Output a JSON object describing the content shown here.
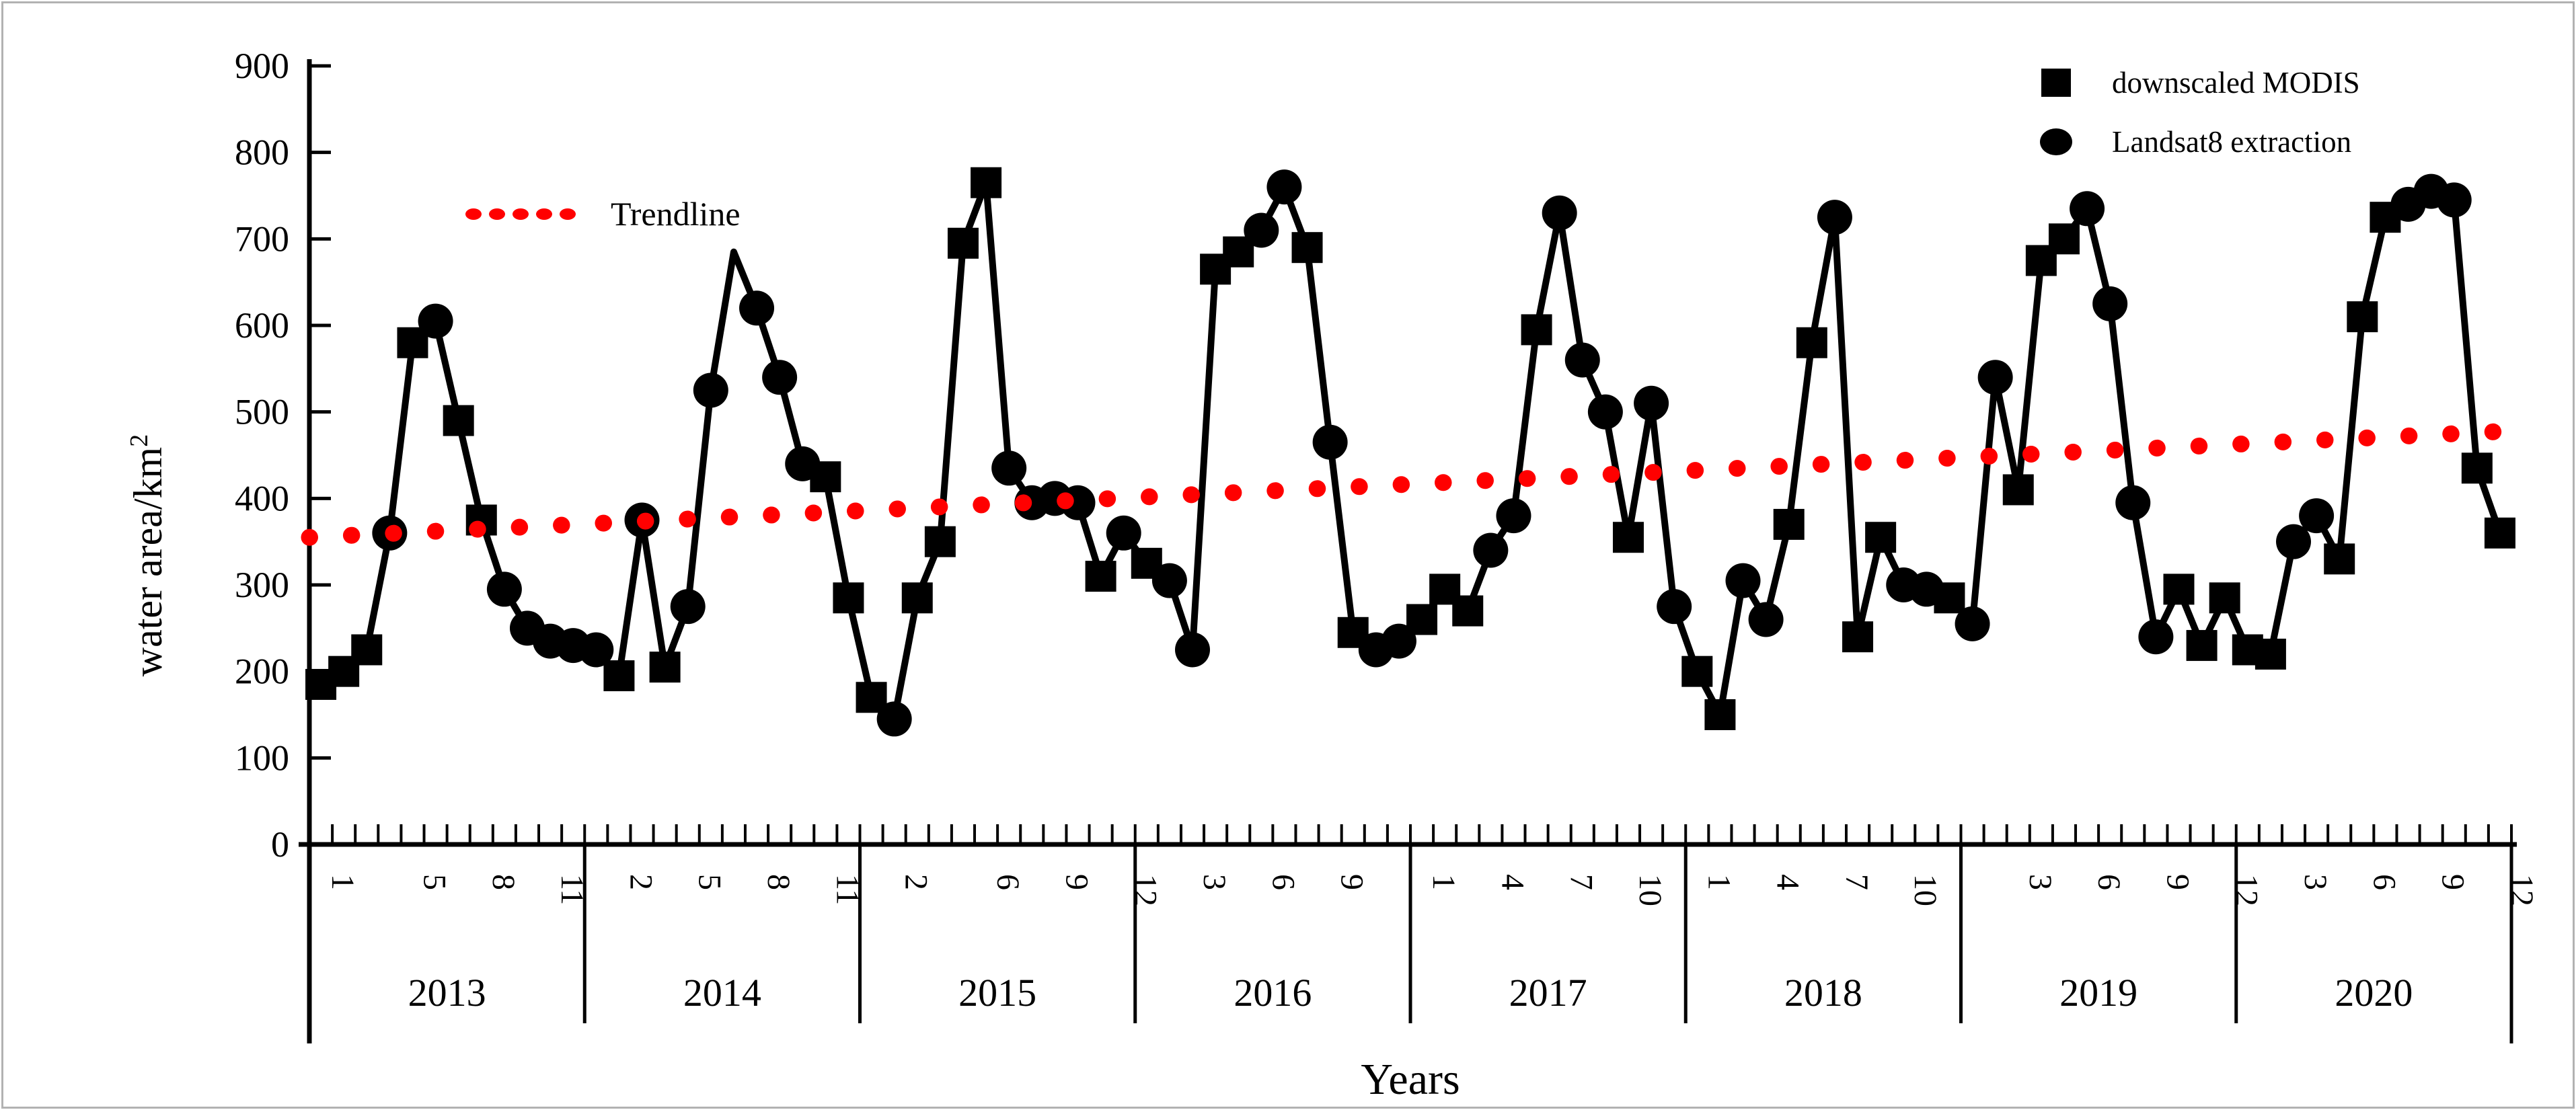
{
  "window": {
    "background": "#ffffff",
    "frame_color": "#b2b2b2"
  },
  "colors": {
    "data": "#000000",
    "trendline": "#ff0000"
  },
  "legend": {
    "items": [
      {
        "marker": "square-icon",
        "label": "downscaled MODIS"
      },
      {
        "marker": "circle-icon",
        "label": "Landsat8 extraction"
      }
    ]
  },
  "trendline_legend": {
    "label": "Trendline"
  },
  "y_axis": {
    "title_main": "water area/km",
    "title_sup": "2",
    "min": 0,
    "max": 900,
    "tick_step": 100,
    "tick_labels": [
      "0",
      "100",
      "200",
      "300",
      "400",
      "500",
      "600",
      "700",
      "800",
      "900"
    ]
  },
  "x_axis": {
    "title": "Years"
  },
  "chart_data": {
    "type": "line",
    "title": "",
    "xlabel": "Years",
    "ylabel": "water area/km²",
    "ylim": [
      0,
      900
    ],
    "grid": "off",
    "legend_position": "top-right",
    "series_legend": {
      "square": "downscaled MODIS",
      "circle": "Landsat8 extraction"
    },
    "marker_key": {
      "s": "square (downscaled MODIS)",
      "c": "circle (Landsat8 extraction)",
      "n": "no marker (line apex)"
    },
    "years": [
      {
        "label": "2013",
        "labeled_months": [
          1,
          5,
          8,
          11
        ],
        "values": [
          185,
          200,
          225,
          360,
          580,
          605,
          490,
          375,
          295,
          250,
          235,
          230
        ],
        "markers": [
          "s",
          "s",
          "s",
          "c",
          "s",
          "c",
          "s",
          "s",
          "c",
          "c",
          "c",
          "c"
        ]
      },
      {
        "label": "2014",
        "labeled_months": [
          2,
          5,
          8,
          11
        ],
        "values": [
          225,
          195,
          375,
          205,
          275,
          525,
          685,
          620,
          540,
          440,
          425,
          285
        ],
        "markers": [
          "c",
          "s",
          "c",
          "s",
          "c",
          "c",
          "n",
          "c",
          "c",
          "c",
          "s",
          "s"
        ]
      },
      {
        "label": "2015",
        "labeled_months": [
          2,
          6,
          9,
          12
        ],
        "values": [
          170,
          145,
          285,
          350,
          695,
          765,
          435,
          395,
          400,
          395,
          310,
          360
        ],
        "markers": [
          "s",
          "c",
          "s",
          "s",
          "s",
          "s",
          "c",
          "c",
          "c",
          "c",
          "s",
          "c"
        ]
      },
      {
        "label": "2016",
        "labeled_months": [
          3,
          6,
          9
        ],
        "values": [
          325,
          305,
          225,
          665,
          685,
          710,
          760,
          690,
          465,
          245,
          225,
          235
        ],
        "markers": [
          "s",
          "c",
          "c",
          "s",
          "s",
          "c",
          "c",
          "s",
          "c",
          "s",
          "c",
          "c"
        ]
      },
      {
        "label": "2017",
        "labeled_months": [
          1,
          4,
          7,
          10
        ],
        "values": [
          260,
          295,
          270,
          340,
          380,
          595,
          730,
          560,
          500,
          355,
          510,
          275
        ],
        "markers": [
          "s",
          "s",
          "s",
          "c",
          "c",
          "s",
          "c",
          "c",
          "c",
          "s",
          "c",
          "c"
        ]
      },
      {
        "label": "2018",
        "labeled_months": [
          1,
          4,
          7,
          10
        ],
        "values": [
          200,
          150,
          305,
          260,
          370,
          580,
          725,
          240,
          355,
          300,
          295,
          285
        ],
        "markers": [
          "s",
          "s",
          "c",
          "c",
          "s",
          "s",
          "c",
          "s",
          "s",
          "c",
          "c",
          "s"
        ]
      },
      {
        "label": "2019",
        "labeled_months": [
          3,
          6,
          9,
          12
        ],
        "values": [
          255,
          540,
          410,
          675,
          700,
          735,
          625,
          395,
          240,
          295,
          230,
          285
        ],
        "markers": [
          "c",
          "c",
          "s",
          "s",
          "s",
          "c",
          "c",
          "c",
          "c",
          "s",
          "s",
          "s"
        ]
      },
      {
        "label": "2020",
        "labeled_months": [
          3,
          6,
          9,
          12
        ],
        "values": [
          225,
          220,
          350,
          380,
          330,
          610,
          725,
          740,
          755,
          745,
          435,
          360
        ],
        "markers": [
          "s",
          "s",
          "c",
          "c",
          "s",
          "s",
          "s",
          "c",
          "c",
          "c",
          "s",
          "s"
        ]
      }
    ],
    "trendline": {
      "start_value": 355,
      "end_value": 478,
      "style": "dotted",
      "color": "#ff0000"
    }
  }
}
